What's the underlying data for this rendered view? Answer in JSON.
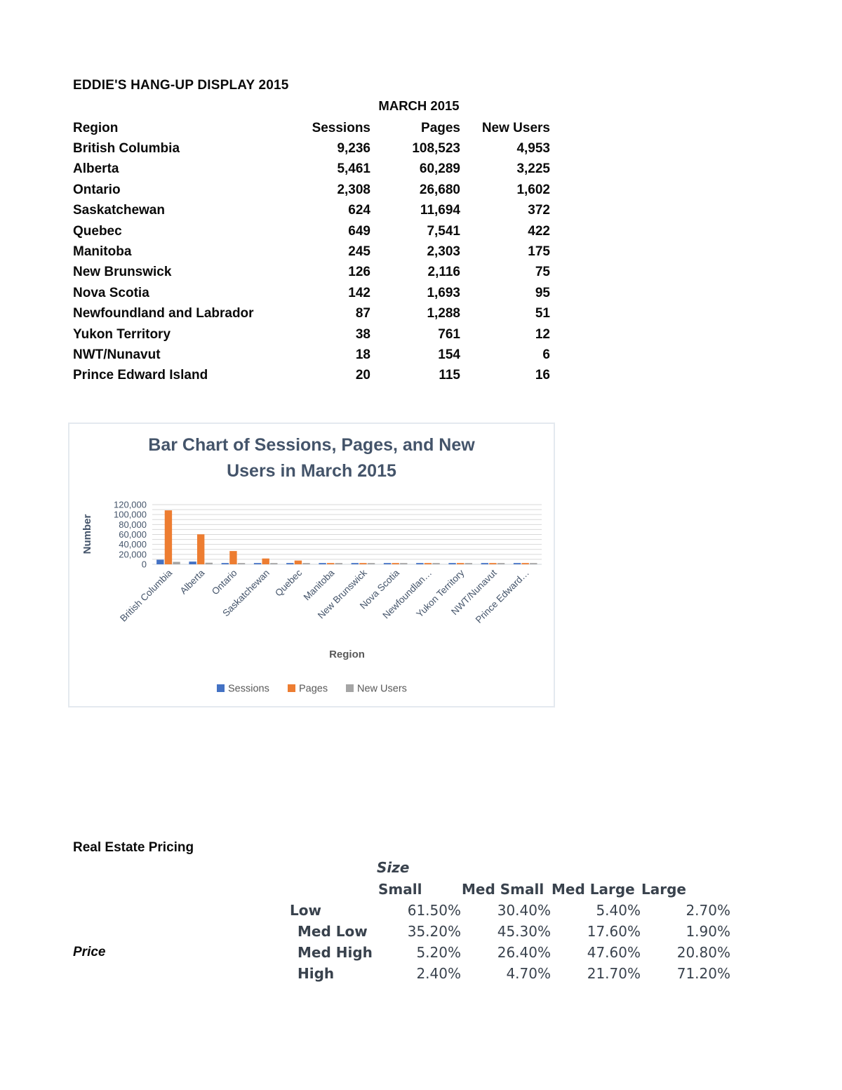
{
  "document": {
    "title": "EDDIE'S HANG-UP DISPLAY 2015"
  },
  "sessions_table": {
    "period": "MARCH 2015",
    "headers": [
      "Region",
      "Sessions",
      "Pages",
      "New Users"
    ],
    "rows": [
      {
        "region": "British Columbia",
        "sessions": "9,236",
        "pages": "108,523",
        "new_users": "4,953"
      },
      {
        "region": "Alberta",
        "sessions": "5,461",
        "pages": "60,289",
        "new_users": "3,225"
      },
      {
        "region": "Ontario",
        "sessions": "2,308",
        "pages": "26,680",
        "new_users": "1,602"
      },
      {
        "region": "Saskatchewan",
        "sessions": "624",
        "pages": "11,694",
        "new_users": "372"
      },
      {
        "region": "Quebec",
        "sessions": "649",
        "pages": "7,541",
        "new_users": "422"
      },
      {
        "region": "Manitoba",
        "sessions": "245",
        "pages": "2,303",
        "new_users": "175"
      },
      {
        "region": "New Brunswick",
        "sessions": "126",
        "pages": "2,116",
        "new_users": "75"
      },
      {
        "region": "Nova Scotia",
        "sessions": "142",
        "pages": "1,693",
        "new_users": "95"
      },
      {
        "region": "Newfoundland and Labrador",
        "sessions": "87",
        "pages": "1,288",
        "new_users": "51"
      },
      {
        "region": "Yukon Territory",
        "sessions": "38",
        "pages": "761",
        "new_users": "12"
      },
      {
        "region": "NWT/Nunavut",
        "sessions": "18",
        "pages": "154",
        "new_users": "6"
      },
      {
        "region": "Prince Edward Island",
        "sessions": "20",
        "pages": "115",
        "new_users": "16"
      }
    ]
  },
  "chart_data": {
    "type": "bar",
    "title": "Bar Chart of Sessions, Pages, and New Users in March 2015",
    "title_lines": [
      "Bar Chart of Sessions, Pages, and New",
      "Users in March 2015"
    ],
    "xlabel": "Region",
    "ylabel": "Number",
    "ylim": [
      0,
      120000
    ],
    "y_tick_step": 20000,
    "y_gridline_step": 10000,
    "y_ticks": [
      "0",
      "20,000",
      "40,000",
      "60,000",
      "80,000",
      "100,000",
      "120,000"
    ],
    "grid": true,
    "legend_position": "bottom",
    "categories": [
      "British Columbia",
      "Alberta",
      "Ontario",
      "Saskatchewan",
      "Quebec",
      "Manitoba",
      "New Brunswick",
      "Nova Scotia",
      "Newfoundlan…",
      "Yukon Territory",
      "NWT/Nunavut",
      "Prince Edward…"
    ],
    "series": [
      {
        "name": "Sessions",
        "color": "#4472C4",
        "values": [
          9236,
          5461,
          2308,
          624,
          649,
          245,
          126,
          142,
          87,
          38,
          18,
          20
        ]
      },
      {
        "name": "Pages",
        "color": "#ED7D31",
        "values": [
          108523,
          60289,
          26680,
          11694,
          7541,
          2303,
          2116,
          1693,
          1288,
          761,
          154,
          115
        ]
      },
      {
        "name": "New Users",
        "color": "#A5A5A5",
        "values": [
          4953,
          3225,
          1602,
          372,
          422,
          175,
          75,
          95,
          51,
          12,
          6,
          16
        ]
      }
    ],
    "colors": {
      "title": "#44546A",
      "axis_text": "#44546A",
      "axis_secondary": "#595959",
      "gridline": "#d9d9d9"
    }
  },
  "pricing_table": {
    "title": "Real Estate Pricing",
    "col_axis_label": "Size",
    "row_axis_label": "Price",
    "col_headers": [
      "Small",
      "Med Small",
      "Med Large",
      "Large"
    ],
    "row_headers": [
      "Low",
      "Med Low",
      "Med High",
      "High"
    ],
    "values": [
      [
        "61.50%",
        "30.40%",
        "5.40%",
        "2.70%"
      ],
      [
        "35.20%",
        "45.30%",
        "17.60%",
        "1.90%"
      ],
      [
        "5.20%",
        "26.40%",
        "47.60%",
        "20.80%"
      ],
      [
        "2.40%",
        "4.70%",
        "21.70%",
        "71.20%"
      ]
    ]
  }
}
